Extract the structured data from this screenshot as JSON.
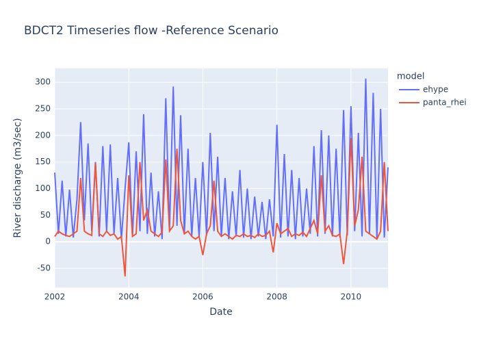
{
  "chart_data": {
    "type": "line",
    "title": "BDCT2 Timeseries flow -Reference Scenario",
    "x_label": "Date",
    "y_label": "River discharge (m3/sec)",
    "legend_title": "model",
    "x": [
      2002.0,
      2002.1,
      2002.2,
      2002.3,
      2002.4,
      2002.5,
      2002.6,
      2002.7,
      2002.8,
      2002.9,
      2003.0,
      2003.1,
      2003.2,
      2003.3,
      2003.4,
      2003.5,
      2003.6,
      2003.7,
      2003.8,
      2003.9,
      2004.0,
      2004.1,
      2004.2,
      2004.3,
      2004.4,
      2004.5,
      2004.6,
      2004.7,
      2004.8,
      2004.9,
      2005.0,
      2005.1,
      2005.2,
      2005.3,
      2005.4,
      2005.5,
      2005.6,
      2005.7,
      2005.8,
      2005.9,
      2006.0,
      2006.1,
      2006.2,
      2006.3,
      2006.4,
      2006.5,
      2006.6,
      2006.7,
      2006.8,
      2006.9,
      2007.0,
      2007.1,
      2007.2,
      2007.3,
      2007.4,
      2007.5,
      2007.6,
      2007.7,
      2007.8,
      2007.9,
      2008.0,
      2008.1,
      2008.2,
      2008.3,
      2008.4,
      2008.5,
      2008.6,
      2008.7,
      2008.8,
      2008.9,
      2009.0,
      2009.1,
      2009.2,
      2009.3,
      2009.4,
      2009.5,
      2009.6,
      2009.7,
      2009.8,
      2009.9,
      2010.0,
      2010.1,
      2010.2,
      2010.3,
      2010.4,
      2010.5,
      2010.6,
      2010.7,
      2010.8,
      2010.9,
      2011.0
    ],
    "series": [
      {
        "name": "ehype",
        "color": "#636efa",
        "values": [
          130,
          15,
          115,
          10,
          98,
          8,
          80,
          225,
          40,
          185,
          20,
          150,
          10,
          180,
          20,
          183,
          15,
          120,
          5,
          100,
          187,
          10,
          170,
          20,
          240,
          15,
          130,
          10,
          95,
          5,
          270,
          20,
          292,
          30,
          238,
          15,
          175,
          10,
          120,
          8,
          150,
          12,
          205,
          20,
          160,
          10,
          120,
          5,
          95,
          10,
          135,
          8,
          100,
          5,
          85,
          10,
          75,
          5,
          80,
          10,
          220,
          8,
          165,
          10,
          135,
          5,
          120,
          10,
          100,
          15,
          180,
          10,
          210,
          15,
          200,
          10,
          175,
          8,
          248,
          12,
          255,
          20,
          205,
          10,
          307,
          15,
          280,
          5,
          250,
          8,
          140
        ]
      },
      {
        "name": "panta_rhei",
        "color": "#ef553b",
        "values": [
          10,
          20,
          15,
          12,
          10,
          15,
          20,
          120,
          20,
          15,
          12,
          148,
          15,
          10,
          20,
          12,
          15,
          5,
          10,
          -65,
          125,
          10,
          15,
          150,
          40,
          60,
          20,
          15,
          10,
          18,
          155,
          20,
          30,
          175,
          40,
          15,
          20,
          10,
          5,
          10,
          -25,
          15,
          30,
          115,
          20,
          10,
          15,
          10,
          5,
          12,
          10,
          15,
          10,
          12,
          8,
          15,
          10,
          12,
          20,
          -20,
          35,
          15,
          20,
          25,
          10,
          15,
          12,
          18,
          10,
          25,
          40,
          15,
          125,
          20,
          30,
          12,
          10,
          15,
          -42,
          20,
          195,
          30,
          60,
          160,
          20,
          15,
          10,
          5,
          20,
          150,
          20
        ]
      }
    ],
    "xlim": [
      2002,
      2011
    ],
    "xticks": [
      2002,
      2004,
      2006,
      2008,
      2010
    ],
    "ylim": [
      -86,
      326
    ],
    "yticks": [
      -50,
      0,
      50,
      100,
      150,
      200,
      250,
      300
    ],
    "grid": true
  }
}
